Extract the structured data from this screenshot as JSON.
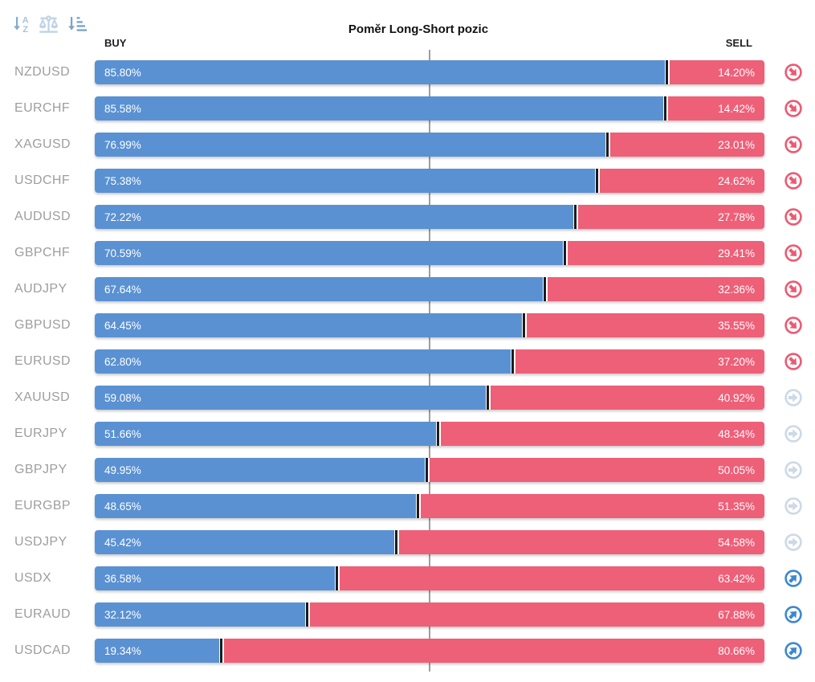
{
  "header": {
    "title": "Poměr Long-Short pozic",
    "buy_label": "BUY",
    "sell_label": "SELL"
  },
  "toolbar": {
    "sort_alphabetical_icon": "sort-alphabetical-descending",
    "balance_icon": "scale-balance",
    "sort_amount_icon": "sort-by-value-descending"
  },
  "colors": {
    "buy_bar": "#5a91d2",
    "sell_bar": "#ee5f78",
    "signal_down": "#ed5a72",
    "signal_neutral": "#cdd9e6",
    "signal_up": "#3d87d2",
    "symbol_text": "#9e9e9e",
    "center_line": "#9e9e9e"
  },
  "chart_data": {
    "type": "bar",
    "orientation": "horizontal",
    "stacked": true,
    "title": "Poměr Long-Short pozic",
    "series_labels": [
      "BUY",
      "SELL"
    ],
    "xlim": [
      0,
      100
    ],
    "legend_position": "top",
    "grid": false,
    "reference_line_pct": 50,
    "rows": [
      {
        "symbol": "NZDUSD",
        "buy": 85.8,
        "sell": 14.2,
        "buy_label": "85.80%",
        "sell_label": "14.20%",
        "signal": "down"
      },
      {
        "symbol": "EURCHF",
        "buy": 85.58,
        "sell": 14.42,
        "buy_label": "85.58%",
        "sell_label": "14.42%",
        "signal": "down"
      },
      {
        "symbol": "XAGUSD",
        "buy": 76.99,
        "sell": 23.01,
        "buy_label": "76.99%",
        "sell_label": "23.01%",
        "signal": "down"
      },
      {
        "symbol": "USDCHF",
        "buy": 75.38,
        "sell": 24.62,
        "buy_label": "75.38%",
        "sell_label": "24.62%",
        "signal": "down"
      },
      {
        "symbol": "AUDUSD",
        "buy": 72.22,
        "sell": 27.78,
        "buy_label": "72.22%",
        "sell_label": "27.78%",
        "signal": "down"
      },
      {
        "symbol": "GBPCHF",
        "buy": 70.59,
        "sell": 29.41,
        "buy_label": "70.59%",
        "sell_label": "29.41%",
        "signal": "down"
      },
      {
        "symbol": "AUDJPY",
        "buy": 67.64,
        "sell": 32.36,
        "buy_label": "67.64%",
        "sell_label": "32.36%",
        "signal": "down"
      },
      {
        "symbol": "GBPUSD",
        "buy": 64.45,
        "sell": 35.55,
        "buy_label": "64.45%",
        "sell_label": "35.55%",
        "signal": "down"
      },
      {
        "symbol": "EURUSD",
        "buy": 62.8,
        "sell": 37.2,
        "buy_label": "62.80%",
        "sell_label": "37.20%",
        "signal": "down"
      },
      {
        "symbol": "XAUUSD",
        "buy": 59.08,
        "sell": 40.92,
        "buy_label": "59.08%",
        "sell_label": "40.92%",
        "signal": "neutral"
      },
      {
        "symbol": "EURJPY",
        "buy": 51.66,
        "sell": 48.34,
        "buy_label": "51.66%",
        "sell_label": "48.34%",
        "signal": "neutral"
      },
      {
        "symbol": "GBPJPY",
        "buy": 49.95,
        "sell": 50.05,
        "buy_label": "49.95%",
        "sell_label": "50.05%",
        "signal": "neutral"
      },
      {
        "symbol": "EURGBP",
        "buy": 48.65,
        "sell": 51.35,
        "buy_label": "48.65%",
        "sell_label": "51.35%",
        "signal": "neutral"
      },
      {
        "symbol": "USDJPY",
        "buy": 45.42,
        "sell": 54.58,
        "buy_label": "45.42%",
        "sell_label": "54.58%",
        "signal": "neutral"
      },
      {
        "symbol": "USDX",
        "buy": 36.58,
        "sell": 63.42,
        "buy_label": "36.58%",
        "sell_label": "63.42%",
        "signal": "up"
      },
      {
        "symbol": "EURAUD",
        "buy": 32.12,
        "sell": 67.88,
        "buy_label": "32.12%",
        "sell_label": "67.88%",
        "signal": "up"
      },
      {
        "symbol": "USDCAD",
        "buy": 19.34,
        "sell": 80.66,
        "buy_label": "19.34%",
        "sell_label": "80.66%",
        "signal": "up"
      }
    ]
  }
}
